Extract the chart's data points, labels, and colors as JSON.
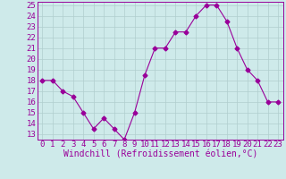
{
  "hours": [
    0,
    1,
    2,
    3,
    4,
    5,
    6,
    7,
    8,
    9,
    10,
    11,
    12,
    13,
    14,
    15,
    16,
    17,
    18,
    19,
    20,
    21,
    22,
    23
  ],
  "values": [
    18,
    18,
    17,
    16.5,
    15,
    13.5,
    14.5,
    13.5,
    12.5,
    15,
    18.5,
    21,
    21,
    22.5,
    22.5,
    24,
    25,
    25,
    23.5,
    21,
    19,
    18,
    16,
    16
  ],
  "line_color": "#990099",
  "marker": "D",
  "marker_size": 2.5,
  "bg_color": "#ceeaea",
  "grid_color": "#b0cece",
  "xlabel": "Windchill (Refroidissement éolien,°C)",
  "xlabel_color": "#990099",
  "xlabel_fontsize": 7,
  "tick_color": "#990099",
  "tick_fontsize": 6.5,
  "ylim_min": 12.5,
  "ylim_max": 25.3,
  "xlim_min": -0.5,
  "xlim_max": 23.5,
  "yticks": [
    13,
    14,
    15,
    16,
    17,
    18,
    19,
    20,
    21,
    22,
    23,
    24,
    25
  ],
  "xticks": [
    0,
    1,
    2,
    3,
    4,
    5,
    6,
    7,
    8,
    9,
    10,
    11,
    12,
    13,
    14,
    15,
    16,
    17,
    18,
    19,
    20,
    21,
    22,
    23
  ]
}
